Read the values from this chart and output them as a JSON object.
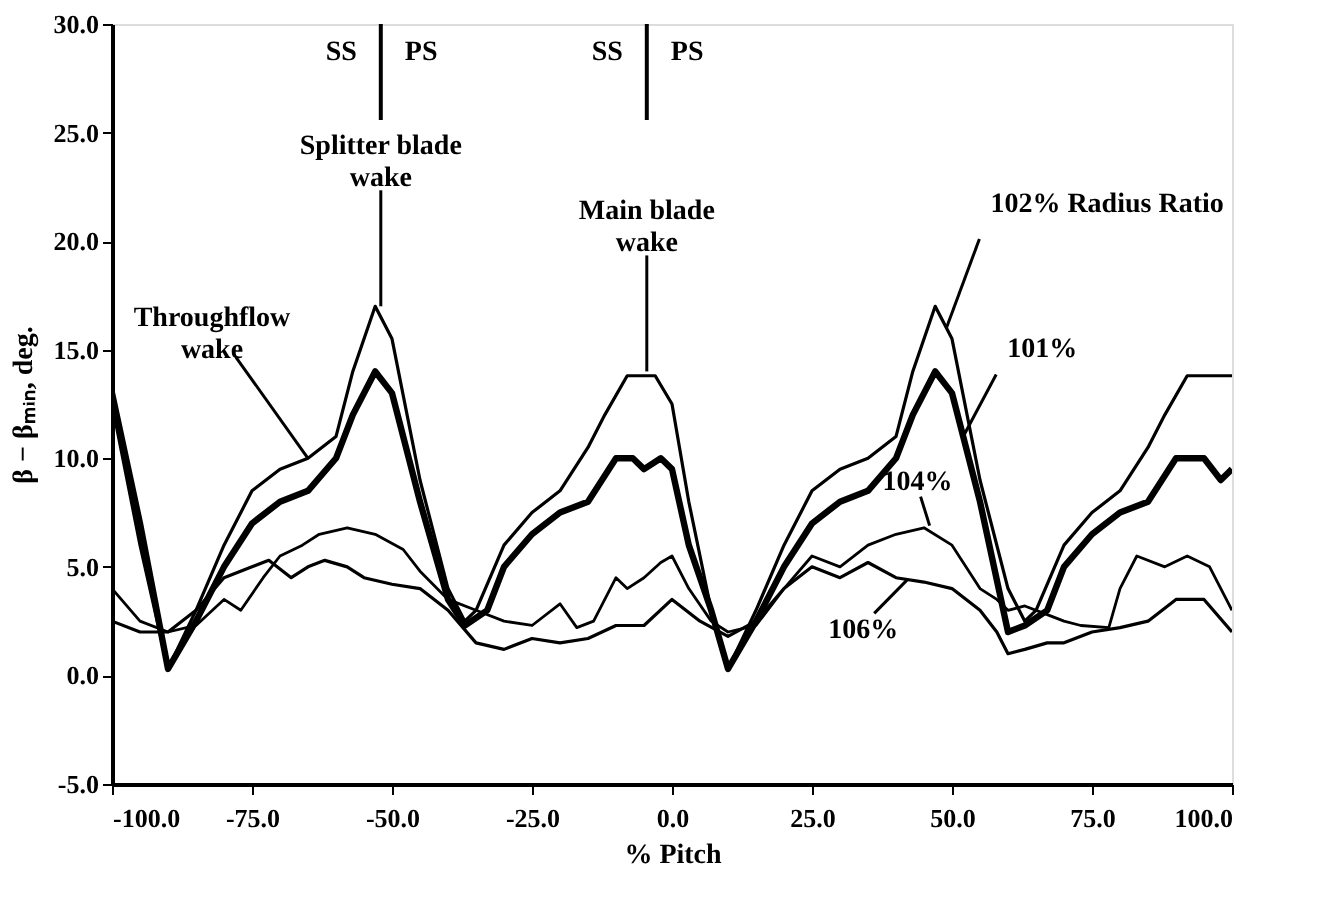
{
  "chart_data": {
    "type": "line",
    "xlabel": "% Pitch",
    "ylabel": "β − βₘᵢₙ, deg.",
    "xlim": [
      -100,
      100
    ],
    "ylim": [
      -5,
      30
    ],
    "xticks": [
      {
        "value": -100,
        "label": "-100.0"
      },
      {
        "value": -75,
        "label": "-75.0"
      },
      {
        "value": -50,
        "label": "-50.0"
      },
      {
        "value": -25,
        "label": "-25.0"
      },
      {
        "value": 0,
        "label": "0.0"
      },
      {
        "value": 25,
        "label": "25.0"
      },
      {
        "value": 50,
        "label": "50.0"
      },
      {
        "value": 75,
        "label": "75.0"
      },
      {
        "value": 100,
        "label": "100.0"
      }
    ],
    "yticks": [
      {
        "value": -5,
        "label": "-5.0"
      },
      {
        "value": 0,
        "label": "0.0"
      },
      {
        "value": 5,
        "label": "5.0"
      },
      {
        "value": 10,
        "label": "10.0"
      },
      {
        "value": 15,
        "label": "15.0"
      },
      {
        "value": 20,
        "label": "20.0"
      },
      {
        "value": 25,
        "label": "25.0"
      },
      {
        "value": 30,
        "label": "30.0"
      }
    ],
    "grid": false,
    "marker": "none",
    "line_style": "solid",
    "series": [
      {
        "color": "#000000",
        "x": [
          -100,
          -95,
          -90,
          -85,
          -80,
          -75,
          -70,
          -65,
          -60,
          -57,
          -53,
          -50,
          -45,
          -40,
          -37,
          -35,
          -30,
          -25,
          -20,
          -15,
          -12,
          -8,
          -3,
          0,
          3,
          7,
          10,
          15,
          20,
          25,
          30,
          35,
          40,
          43,
          47,
          50,
          55,
          60,
          63,
          65,
          70,
          75,
          80,
          85,
          88,
          92,
          97,
          100
        ],
        "values": [
          12.5,
          6,
          0.3,
          3,
          6,
          8.5,
          9.5,
          10,
          11,
          14,
          17,
          15.5,
          9,
          4,
          2.5,
          3,
          6,
          7.5,
          8.5,
          10.5,
          12,
          13.8,
          13.8,
          12.5,
          8,
          3,
          0.3,
          3,
          6,
          8.5,
          9.5,
          10,
          11,
          14,
          17,
          15.5,
          9,
          4,
          2.5,
          3,
          6,
          7.5,
          8.5,
          10.5,
          12,
          13.8,
          13.8,
          13.8
        ]
      },
      {
        "color": "#000000",
        "x": [
          -100,
          -95,
          -90,
          -85,
          -80,
          -75,
          -70,
          -65,
          -60,
          -57,
          -53,
          -50,
          -45,
          -40,
          -37,
          -33,
          -30,
          -25,
          -20,
          -15,
          -10,
          -7,
          -5,
          -2,
          0,
          3,
          7,
          10,
          15,
          20,
          25,
          30,
          35,
          40,
          43,
          47,
          50,
          55,
          60,
          63,
          67,
          70,
          75,
          80,
          85,
          90,
          95,
          98,
          100
        ],
        "values": [
          13,
          7,
          0.3,
          2.5,
          5,
          7,
          8,
          8.5,
          10,
          12,
          14,
          13,
          8,
          3.5,
          2.3,
          3,
          5,
          6.5,
          7.5,
          8,
          10,
          10,
          9.5,
          10,
          9.5,
          6,
          3,
          0.3,
          2.5,
          5,
          7,
          8,
          8.5,
          10,
          12,
          14,
          13,
          8,
          2,
          2.3,
          3,
          5,
          6.5,
          7.5,
          8,
          10,
          10,
          9,
          9.5
        ]
      },
      {
        "color": "#000000",
        "x": [
          -100,
          -95,
          -90,
          -85,
          -80,
          -77,
          -73,
          -70,
          -66,
          -63,
          -58,
          -53,
          -48,
          -45,
          -40,
          -35,
          -30,
          -25,
          -20,
          -17,
          -14,
          -10,
          -8,
          -5,
          -2,
          0,
          3,
          7,
          10,
          15,
          20,
          25,
          30,
          35,
          40,
          45,
          50,
          55,
          58,
          60,
          63,
          67,
          70,
          73,
          78,
          80,
          83,
          88,
          92,
          96,
          100
        ],
        "values": [
          4,
          2.5,
          2,
          2.3,
          3.5,
          3,
          4.5,
          5.5,
          6,
          6.5,
          6.8,
          6.5,
          5.8,
          4.8,
          3.5,
          3,
          2.5,
          2.3,
          3.3,
          2.2,
          2.5,
          4.5,
          4,
          4.5,
          5.2,
          5.5,
          4,
          2.5,
          2,
          2.3,
          4,
          5.5,
          5,
          6,
          6.5,
          6.8,
          6,
          4,
          3.5,
          3,
          3.2,
          2.8,
          2.5,
          2.3,
          2.2,
          4,
          5.5,
          5,
          5.5,
          5,
          3
        ]
      },
      {
        "color": "#000000",
        "x": [
          -100,
          -95,
          -90,
          -85,
          -80,
          -75,
          -72,
          -68,
          -65,
          -62,
          -58,
          -55,
          -50,
          -45,
          -40,
          -35,
          -30,
          -25,
          -20,
          -15,
          -10,
          -5,
          0,
          5,
          10,
          15,
          20,
          25,
          30,
          35,
          40,
          45,
          50,
          55,
          58,
          60,
          63,
          67,
          70,
          75,
          80,
          85,
          90,
          95,
          100
        ],
        "values": [
          2.5,
          2,
          2,
          3,
          4.5,
          5,
          5.3,
          4.5,
          5,
          5.3,
          5,
          4.5,
          4.2,
          4,
          3,
          1.5,
          1.2,
          1.7,
          1.5,
          1.7,
          2.3,
          2.3,
          3.5,
          2.5,
          1.8,
          2.5,
          4,
          5,
          4.5,
          5.2,
          4.5,
          4.3,
          4,
          3,
          2,
          1,
          1.2,
          1.5,
          1.5,
          2,
          2.2,
          2.5,
          3.5,
          3.5,
          2
        ]
      }
    ],
    "ref_lines": [
      {
        "axis": "x",
        "value": -52
      },
      {
        "axis": "x",
        "value": -4.5
      }
    ],
    "annotations": [
      {
        "text": "SS",
        "x": -52,
        "y": 29
      },
      {
        "text": "PS",
        "x": -52,
        "y": 29
      },
      {
        "text": "SS",
        "x": -4.5,
        "y": 29
      },
      {
        "text": "PS",
        "x": -4.5,
        "y": 29
      },
      {
        "text": "Splitter blade wake",
        "x": -52,
        "y": 17
      },
      {
        "text": "Main blade wake",
        "x": -4.5,
        "y": 14
      },
      {
        "text": "Throughflow wake",
        "x": -65,
        "y": 10
      },
      {
        "text": "102% Radius Ratio",
        "x": 49,
        "y": 16
      },
      {
        "text": "101%",
        "x": 52,
        "y": 11
      },
      {
        "text": "104%",
        "x": 46,
        "y": 6.9
      },
      {
        "text": "106%",
        "x": 42,
        "y": 4.4
      }
    ]
  }
}
